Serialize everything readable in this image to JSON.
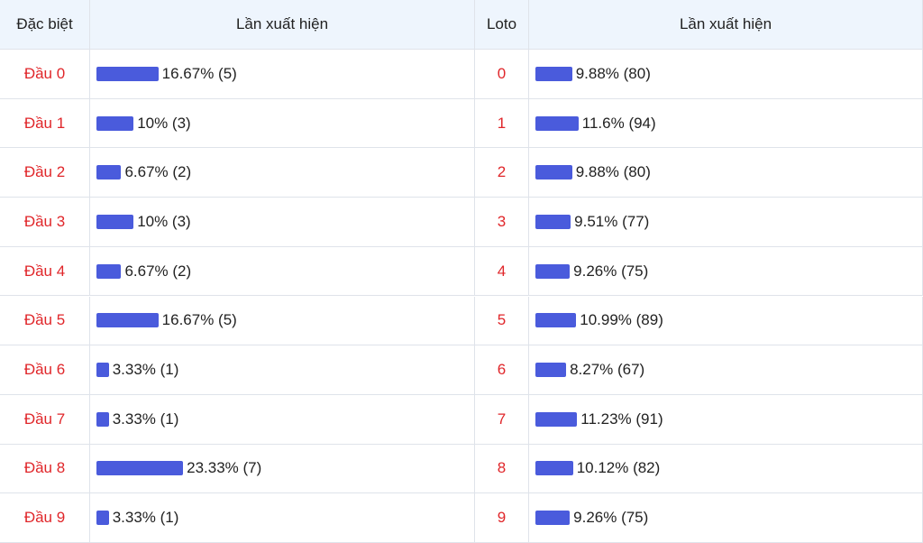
{
  "table": {
    "header": [
      "Đặc biệt",
      "Lần xuất hiện",
      "Loto",
      "Lần xuất hiện"
    ],
    "rows": [
      {
        "dau": "Đầu 0",
        "dau_stat": {
          "percent": 16.67,
          "label": "16.67% (5)"
        },
        "loto": "0",
        "loto_stat": {
          "percent": 9.88,
          "label": "9.88% (80)"
        }
      },
      {
        "dau": "Đầu 1",
        "dau_stat": {
          "percent": 10,
          "label": "10% (3)"
        },
        "loto": "1",
        "loto_stat": {
          "percent": 11.6,
          "label": "11.6% (94)"
        }
      },
      {
        "dau": "Đầu 2",
        "dau_stat": {
          "percent": 6.67,
          "label": "6.67% (2)"
        },
        "loto": "2",
        "loto_stat": {
          "percent": 9.88,
          "label": "9.88% (80)"
        }
      },
      {
        "dau": "Đầu 3",
        "dau_stat": {
          "percent": 10,
          "label": "10% (3)"
        },
        "loto": "3",
        "loto_stat": {
          "percent": 9.51,
          "label": "9.51% (77)"
        }
      },
      {
        "dau": "Đầu 4",
        "dau_stat": {
          "percent": 6.67,
          "label": "6.67% (2)"
        },
        "loto": "4",
        "loto_stat": {
          "percent": 9.26,
          "label": "9.26% (75)"
        }
      },
      {
        "dau": "Đầu 5",
        "dau_stat": {
          "percent": 16.67,
          "label": "16.67% (5)"
        },
        "loto": "5",
        "loto_stat": {
          "percent": 10.99,
          "label": "10.99% (89)"
        }
      },
      {
        "dau": "Đầu 6",
        "dau_stat": {
          "percent": 3.33,
          "label": "3.33% (1)"
        },
        "loto": "6",
        "loto_stat": {
          "percent": 8.27,
          "label": "8.27% (67)"
        }
      },
      {
        "dau": "Đầu 7",
        "dau_stat": {
          "percent": 3.33,
          "label": "3.33% (1)"
        },
        "loto": "7",
        "loto_stat": {
          "percent": 11.23,
          "label": "11.23% (91)"
        }
      },
      {
        "dau": "Đầu 8",
        "dau_stat": {
          "percent": 23.33,
          "label": "23.33% (7)"
        },
        "loto": "8",
        "loto_stat": {
          "percent": 10.12,
          "label": "10.12% (82)"
        }
      },
      {
        "dau": "Đầu 9",
        "dau_stat": {
          "percent": 3.33,
          "label": "3.33% (1)"
        },
        "loto": "9",
        "loto_stat": {
          "percent": 9.26,
          "label": "9.26% (75)"
        }
      }
    ]
  }
}
